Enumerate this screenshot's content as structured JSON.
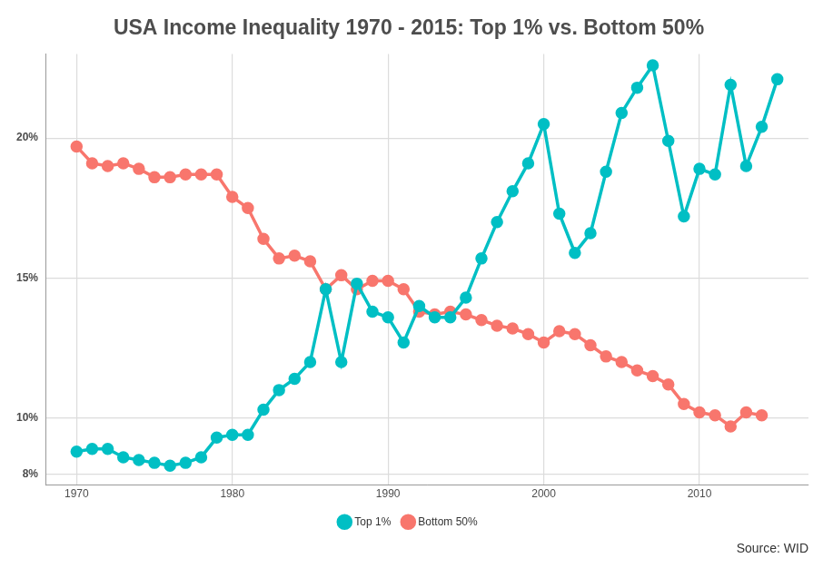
{
  "chart_data": {
    "type": "line",
    "title": "USA Income Inequality 1970 - 2015: Top 1% vs. Bottom 50%",
    "caption": "Source: WID",
    "x": [
      1970,
      1971,
      1972,
      1973,
      1974,
      1975,
      1976,
      1977,
      1978,
      1979,
      1980,
      1981,
      1982,
      1983,
      1984,
      1985,
      1986,
      1987,
      1988,
      1989,
      1990,
      1991,
      1992,
      1993,
      1994,
      1995,
      1996,
      1997,
      1998,
      1999,
      2000,
      2001,
      2002,
      2003,
      2004,
      2005,
      2006,
      2007,
      2008,
      2009,
      2010,
      2011,
      2012,
      2013,
      2014,
      2015
    ],
    "series": [
      {
        "name": "Top 1%",
        "color": "#00BFC4",
        "marker": "circle",
        "values": [
          8.8,
          8.9,
          8.9,
          8.6,
          8.5,
          8.4,
          8.3,
          8.4,
          8.6,
          9.3,
          9.4,
          9.4,
          10.3,
          11.0,
          11.4,
          12.0,
          14.6,
          12.0,
          14.8,
          13.8,
          13.6,
          12.7,
          14.0,
          13.6,
          13.6,
          14.3,
          15.7,
          17.0,
          18.1,
          19.1,
          20.5,
          17.3,
          15.9,
          16.6,
          18.8,
          20.9,
          21.8,
          22.6,
          19.9,
          17.2,
          18.9,
          18.7,
          21.9,
          19.0,
          20.4,
          22.1
        ]
      },
      {
        "name": "Bottom 50%",
        "color": "#F8766D",
        "marker": "circle",
        "values": [
          19.7,
          19.1,
          19.0,
          19.1,
          18.9,
          18.6,
          18.6,
          18.7,
          18.7,
          18.7,
          17.9,
          17.5,
          16.4,
          15.7,
          15.8,
          15.6,
          14.6,
          15.1,
          14.6,
          14.9,
          14.9,
          14.6,
          13.8,
          13.7,
          13.8,
          13.7,
          13.5,
          13.3,
          13.2,
          13.0,
          12.7,
          13.1,
          13.0,
          12.6,
          12.2,
          12.0,
          11.7,
          11.5,
          11.2,
          10.5,
          10.2,
          10.1,
          9.7,
          10.2,
          10.1,
          null
        ]
      }
    ],
    "xlim": [
      1968,
      2017
    ],
    "xticks": [
      1970,
      1980,
      1990,
      2000,
      2010
    ],
    "ylim": [
      7.6,
      23
    ],
    "yticks": [
      {
        "value": 8,
        "label": "8%"
      },
      {
        "value": 10,
        "label": "10%"
      },
      {
        "value": 15,
        "label": "15%"
      },
      {
        "value": 20,
        "label": "20%"
      }
    ],
    "grid": true,
    "legend": "bottom"
  }
}
